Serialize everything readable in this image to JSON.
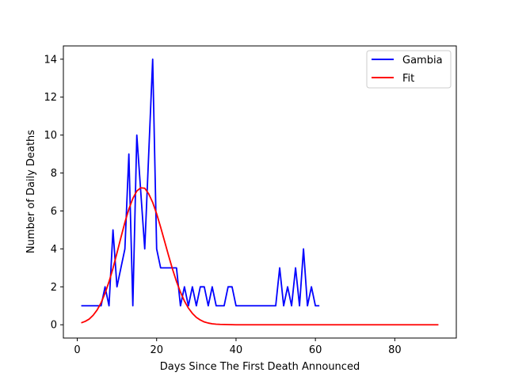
{
  "chart_data": {
    "type": "line",
    "title": "",
    "xlabel": "Days Since The First Death Announced",
    "ylabel": "Number of Daily Deaths",
    "xlim": [
      -3.5,
      95.5
    ],
    "ylim": [
      -0.7,
      14.7
    ],
    "xticks": [
      0,
      20,
      40,
      60,
      80
    ],
    "yticks": [
      0,
      2,
      4,
      6,
      8,
      10,
      12,
      14
    ],
    "grid": false,
    "legend_position": "top-right",
    "series": [
      {
        "name": "Gambia",
        "color": "#0000ff",
        "x": [
          1,
          2,
          3,
          4,
          5,
          6,
          7,
          8,
          9,
          10,
          11,
          12,
          13,
          14,
          15,
          16,
          17,
          18,
          19,
          20,
          21,
          22,
          23,
          24,
          25,
          26,
          27,
          28,
          29,
          30,
          31,
          32,
          33,
          34,
          35,
          36,
          37,
          38,
          39,
          40,
          41,
          42,
          43,
          44,
          45,
          46,
          47,
          48,
          49,
          50,
          51,
          52,
          53,
          54,
          55,
          56,
          57,
          58,
          59,
          60,
          61
        ],
        "y": [
          1,
          1,
          1,
          1,
          1,
          1,
          2,
          1,
          5,
          2,
          3,
          4,
          9,
          1,
          10,
          7,
          4,
          9,
          14,
          4,
          3,
          3,
          3,
          3,
          3,
          1,
          2,
          1,
          2,
          1,
          2,
          2,
          1,
          2,
          1,
          1,
          1,
          2,
          2,
          1,
          1,
          1,
          1,
          1,
          1,
          1,
          1,
          1,
          1,
          1,
          3,
          1,
          2,
          1,
          3,
          1,
          4,
          1,
          2,
          1,
          1
        ]
      },
      {
        "name": "Fit",
        "color": "#ff0000",
        "x": [
          1,
          2,
          3,
          4,
          5,
          6,
          7,
          8,
          9,
          10,
          11,
          12,
          13,
          14,
          15,
          16,
          17,
          18,
          19,
          20,
          21,
          22,
          23,
          24,
          25,
          26,
          27,
          28,
          29,
          30,
          31,
          32,
          33,
          34,
          35,
          36,
          38,
          40,
          45,
          50,
          60,
          70,
          80,
          91
        ],
        "y": [
          0.1,
          0.18,
          0.3,
          0.5,
          0.78,
          1.16,
          1.66,
          2.27,
          2.98,
          3.78,
          4.6,
          5.4,
          6.1,
          6.66,
          7.05,
          7.22,
          7.2,
          6.9,
          6.45,
          5.85,
          5.15,
          4.4,
          3.65,
          2.93,
          2.28,
          1.72,
          1.25,
          0.88,
          0.6,
          0.39,
          0.25,
          0.15,
          0.09,
          0.05,
          0.03,
          0.02,
          0.01,
          0.0,
          0,
          0,
          0,
          0,
          0,
          0
        ]
      }
    ]
  }
}
